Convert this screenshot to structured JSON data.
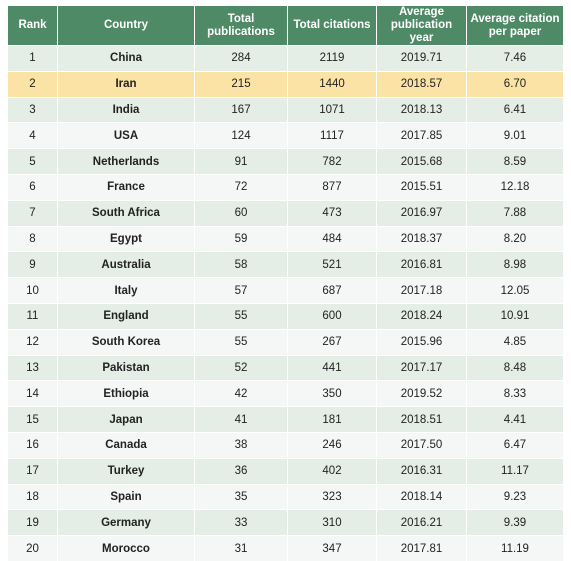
{
  "columns": [
    "Rank",
    "Country",
    "Total publications",
    "Total citations",
    "Average publication year",
    "Average citation per paper"
  ],
  "highlight_color": "#fbe3a5",
  "header_color": "#4f8a66",
  "rows": [
    [
      "1",
      "China",
      "284",
      "2119",
      "2019.71",
      "7.46"
    ],
    [
      "2",
      "Iran",
      "215",
      "1440",
      "2018.57",
      "6.70"
    ],
    [
      "3",
      "India",
      "167",
      "1071",
      "2018.13",
      "6.41"
    ],
    [
      "4",
      "USA",
      "124",
      "1117",
      "2017.85",
      "9.01"
    ],
    [
      "5",
      "Netherlands",
      "91",
      "782",
      "2015.68",
      "8.59"
    ],
    [
      "6",
      "France",
      "72",
      "877",
      "2015.51",
      "12.18"
    ],
    [
      "7",
      "South Africa",
      "60",
      "473",
      "2016.97",
      "7.88"
    ],
    [
      "8",
      "Egypt",
      "59",
      "484",
      "2018.37",
      "8.20"
    ],
    [
      "9",
      "Australia",
      "58",
      "521",
      "2016.81",
      "8.98"
    ],
    [
      "10",
      "Italy",
      "57",
      "687",
      "2017.18",
      "12.05"
    ],
    [
      "11",
      "England",
      "55",
      "600",
      "2018.24",
      "10.91"
    ],
    [
      "12",
      "South Korea",
      "55",
      "267",
      "2015.96",
      "4.85"
    ],
    [
      "13",
      "Pakistan",
      "52",
      "441",
      "2017.17",
      "8.48"
    ],
    [
      "14",
      "Ethiopia",
      "42",
      "350",
      "2019.52",
      "8.33"
    ],
    [
      "15",
      "Japan",
      "41",
      "181",
      "2018.51",
      "4.41"
    ],
    [
      "16",
      "Canada",
      "38",
      "246",
      "2017.50",
      "6.47"
    ],
    [
      "17",
      "Turkey",
      "36",
      "402",
      "2016.31",
      "11.17"
    ],
    [
      "18",
      "Spain",
      "35",
      "323",
      "2018.14",
      "9.23"
    ],
    [
      "19",
      "Germany",
      "33",
      "310",
      "2016.21",
      "9.39"
    ],
    [
      "20",
      "Morocco",
      "31",
      "347",
      "2017.81",
      "11.19"
    ]
  ]
}
